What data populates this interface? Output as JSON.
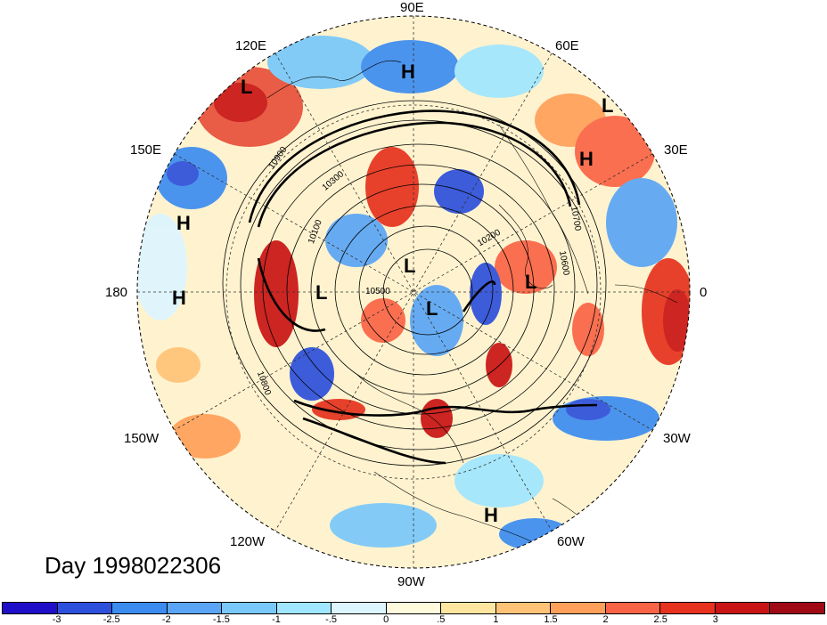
{
  "map": {
    "projection": "north-polar-stereographic",
    "longitude_labels": {
      "top": "90E",
      "upper_left": "120E",
      "upper_right": "60E",
      "left_upper": "150E",
      "right_upper": "30E",
      "left": "180",
      "right": "0",
      "left_lower": "150W",
      "right_lower": "30W",
      "lower_left": "120W",
      "lower_right": "60W",
      "bottom": "90W"
    },
    "pressure_centers": [
      {
        "label": "L"
      },
      {
        "label": "H"
      },
      {
        "label": "L"
      },
      {
        "label": "H"
      },
      {
        "label": "H"
      },
      {
        "label": "H"
      },
      {
        "label": "L"
      },
      {
        "label": "L"
      },
      {
        "label": "L"
      },
      {
        "label": "L"
      },
      {
        "label": "H"
      }
    ],
    "contour_labels": [
      "10900",
      "10800",
      "10700",
      "10600",
      "10500",
      "10300",
      "10200",
      "10100"
    ],
    "day_label": "Day 1998022306"
  },
  "colorbar": {
    "colors": [
      "#1f0fc8",
      "#2d50dc",
      "#3c8cf0",
      "#5aa5f5",
      "#78c8fa",
      "#a0e6ff",
      "#dcf5ff",
      "#fffadc",
      "#ffe6a0",
      "#ffc378",
      "#ffa05a",
      "#fa6446",
      "#e6321e",
      "#c81414",
      "#a00a14"
    ],
    "tick_labels": [
      "-3",
      "-2.5",
      "-2",
      "-1.5",
      "-1",
      "-.5",
      "0",
      ".5",
      "1",
      "1.5",
      "2",
      "2.5",
      "3"
    ]
  }
}
